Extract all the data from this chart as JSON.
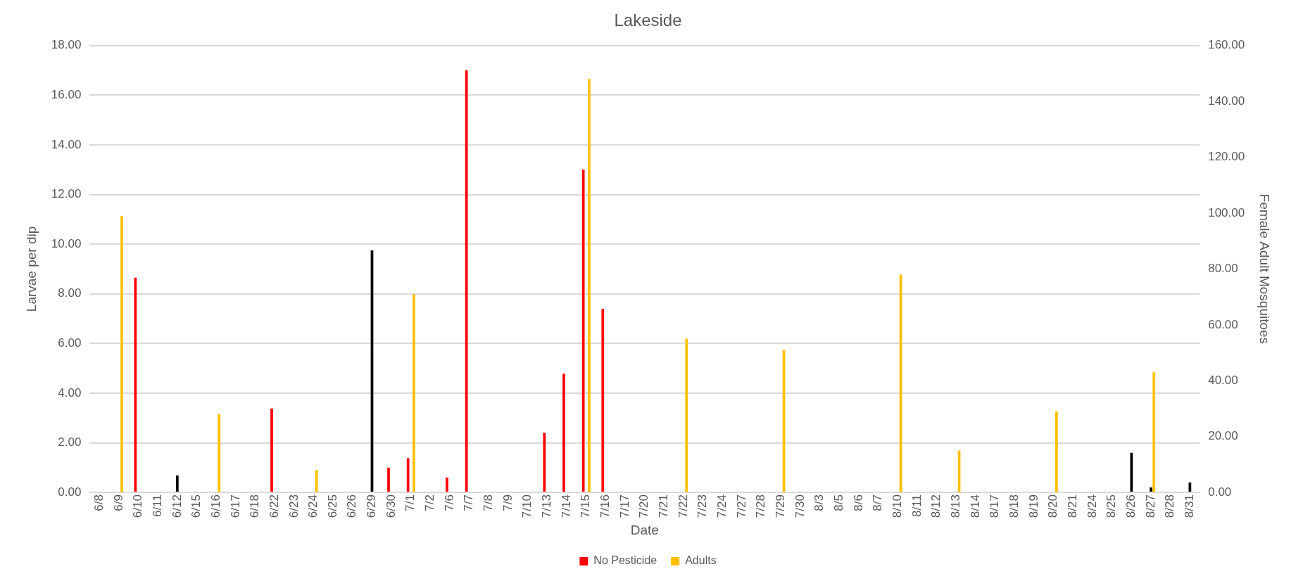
{
  "chart_data": {
    "type": "bar",
    "title": "Lakeside",
    "xlabel": "Date",
    "ylabel": "Larvae per dip",
    "y2label": "Female Adult Mosquitoes",
    "categories": [
      "6/8",
      "6/9",
      "6/10",
      "6/11",
      "6/12",
      "6/15",
      "6/16",
      "6/17",
      "6/18",
      "6/22",
      "6/23",
      "6/24",
      "6/25",
      "6/26",
      "6/29",
      "6/30",
      "7/1",
      "7/2",
      "7/6",
      "7/7",
      "7/8",
      "7/9",
      "7/10",
      "7/13",
      "7/14",
      "7/15",
      "7/16",
      "7/17",
      "7/20",
      "7/21",
      "7/22",
      "7/23",
      "7/24",
      "7/27",
      "7/28",
      "7/29",
      "7/30",
      "8/3",
      "8/5",
      "8/6",
      "8/7",
      "8/10",
      "8/11",
      "8/12",
      "8/13",
      "8/14",
      "8/17",
      "8/18",
      "8/19",
      "8/20",
      "8/21",
      "8/24",
      "8/25",
      "8/26",
      "8/27",
      "8/28",
      "8/31"
    ],
    "series": [
      {
        "name": "No Pesticide",
        "color": "#ff0000",
        "values": [
          null,
          null,
          8.65,
          null,
          null,
          null,
          null,
          null,
          null,
          3.38,
          null,
          null,
          null,
          null,
          null,
          1.0,
          1.38,
          null,
          0.6,
          17.0,
          null,
          null,
          null,
          2.4,
          4.78,
          13.0,
          7.4,
          null,
          null,
          null,
          null,
          null,
          null,
          null,
          null,
          null,
          null,
          null,
          null,
          null,
          null,
          null,
          null,
          null,
          null,
          null,
          null,
          null,
          null,
          null,
          null,
          null,
          null,
          null,
          null,
          null,
          null
        ]
      },
      {
        "color": "#000000",
        "values": [
          null,
          null,
          null,
          null,
          0.68,
          null,
          null,
          null,
          null,
          null,
          null,
          null,
          null,
          null,
          9.75,
          null,
          null,
          null,
          null,
          null,
          null,
          null,
          null,
          null,
          null,
          null,
          null,
          null,
          null,
          null,
          null,
          null,
          null,
          null,
          null,
          null,
          null,
          null,
          null,
          null,
          null,
          null,
          null,
          null,
          null,
          null,
          null,
          null,
          null,
          null,
          null,
          null,
          null,
          1.6,
          0.2,
          null,
          0.4
        ]
      },
      {
        "name": "Adults",
        "color": "#ffc000",
        "axis": "y2",
        "values": [
          null,
          99,
          null,
          null,
          null,
          null,
          28,
          null,
          null,
          null,
          null,
          8,
          null,
          null,
          null,
          null,
          71,
          null,
          null,
          null,
          null,
          null,
          null,
          null,
          null,
          148,
          null,
          null,
          null,
          null,
          55,
          null,
          null,
          null,
          null,
          51,
          null,
          null,
          null,
          null,
          null,
          78,
          null,
          null,
          15,
          null,
          null,
          null,
          null,
          29,
          null,
          null,
          null,
          null,
          43,
          null,
          null
        ]
      }
    ],
    "ylim": [
      0,
      18
    ],
    "yticks": [
      {
        "value": 0,
        "label": "0.00"
      },
      {
        "value": 2,
        "label": "2.00"
      },
      {
        "value": 4,
        "label": "4.00"
      },
      {
        "value": 6,
        "label": "6.00"
      },
      {
        "value": 8,
        "label": "8.00"
      },
      {
        "value": 10,
        "label": "10.00"
      },
      {
        "value": 12,
        "label": "12.00"
      },
      {
        "value": 14,
        "label": "14.00"
      },
      {
        "value": 16,
        "label": "16.00"
      },
      {
        "value": 18,
        "label": "18.00"
      }
    ],
    "y2lim": [
      0,
      160
    ],
    "y2ticks": [
      {
        "value": 0,
        "label": "0.00"
      },
      {
        "value": 20,
        "label": "20.00"
      },
      {
        "value": 40,
        "label": "40.00"
      },
      {
        "value": 60,
        "label": "60.00"
      },
      {
        "value": 80,
        "label": "80.00"
      },
      {
        "value": 100,
        "label": "100.00"
      },
      {
        "value": 120,
        "label": "120.00"
      },
      {
        "value": 140,
        "label": "140.00"
      },
      {
        "value": 160,
        "label": "160.00"
      }
    ],
    "grid": "y",
    "legend": "bottom"
  }
}
